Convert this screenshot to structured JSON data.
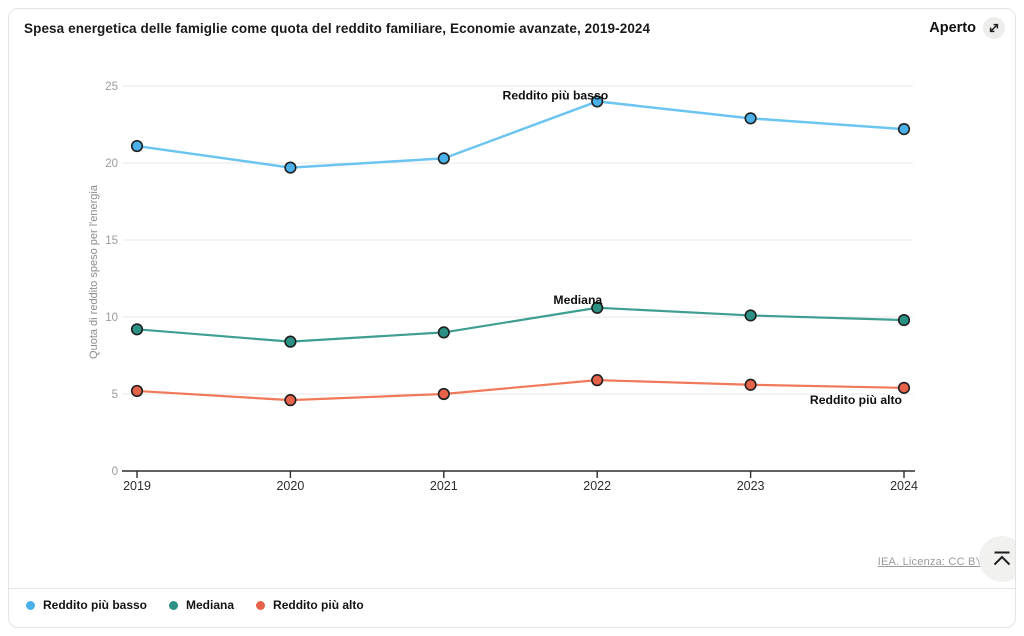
{
  "header": {
    "title": "Spesa energetica delle famiglie come quota del reddito familiare, Economie avanzate, 2019-2024",
    "open_label": "Aperto"
  },
  "chart_data": {
    "type": "line",
    "title": "Spesa energetica delle famiglie come quota del reddito familiare, Economie avanzate, 2019-2024",
    "x": [
      2019,
      2020,
      2021,
      2022,
      2023,
      2024
    ],
    "xlabel": "",
    "ylabel": "Quota di reddito speso per l'energia",
    "ylim": [
      0,
      25
    ],
    "yticks": [
      0,
      5,
      10,
      15,
      20,
      25
    ],
    "grid": true,
    "legend_position": "bottom",
    "series": [
      {
        "name": "Reddito più basso",
        "values": [
          21.1,
          19.7,
          20.3,
          24.0,
          22.9,
          22.2
        ],
        "line_color": "#6cc4f1",
        "marker_color": "#49b1e8"
      },
      {
        "name": "Mediana",
        "values": [
          9.2,
          8.4,
          9.0,
          10.6,
          10.1,
          9.8
        ],
        "line_color": "#3f9e92",
        "marker_color": "#2b9184"
      },
      {
        "name": "Reddito più alto",
        "values": [
          5.2,
          4.6,
          5.0,
          5.9,
          5.6,
          5.4
        ],
        "line_color": "#f0795a",
        "marker_color": "#e7624a"
      }
    ],
    "annotations": [
      {
        "text": "Reddito più basso",
        "series": 0,
        "year": 2022
      },
      {
        "text": "Mediana",
        "series": 1,
        "year": 2022
      },
      {
        "text": "Reddito più alto",
        "series": 2,
        "year": 2024
      }
    ]
  },
  "footer": {
    "license_label": "IEA. Licenza: CC BY 4.0"
  },
  "colors": {
    "grid": "#e8e8e8",
    "axis": "#2e2e2e",
    "y_tick_text": "#9b9b9b",
    "x_tick_text": "#2e2e2e",
    "axis_title_text": "#8c8c8c",
    "annotation_text": "#0f0f0f"
  }
}
